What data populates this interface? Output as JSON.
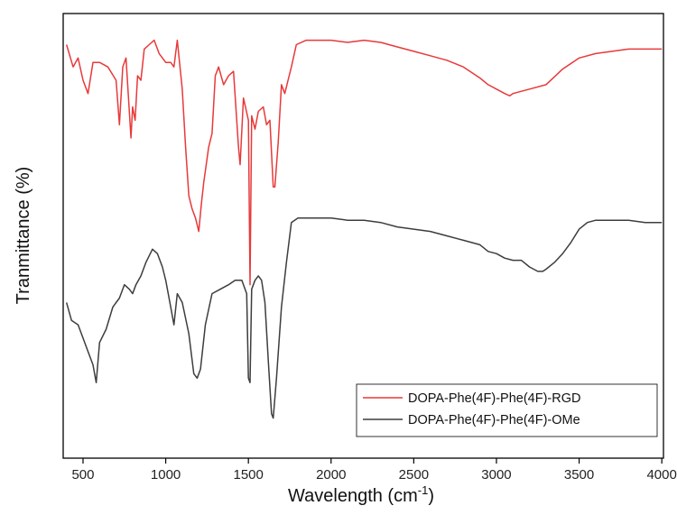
{
  "chart_data": {
    "type": "line",
    "title": "",
    "xlabel": "Wavelength (cm",
    "xlabel_sup": "-1",
    "xlabel_close": ")",
    "ylabel": "Tranmittance (%)",
    "xlim": [
      380,
      4010
    ],
    "xticks": [
      "500",
      "1000",
      "1500",
      "2000",
      "2500",
      "3000",
      "3500",
      "4000"
    ],
    "ylim": [
      0,
      100
    ],
    "y_ticks_shown": false,
    "grid": false,
    "legend_position": "bottom-right",
    "colors": {
      "rgd": "#e8393a",
      "ome": "#3d3d3d"
    },
    "series": [
      {
        "name": "DOPA-Phe(4F)-Phe(4F)-RGD",
        "x": [
          400,
          440,
          470,
          500,
          530,
          560,
          600,
          650,
          700,
          720,
          740,
          760,
          790,
          800,
          815,
          830,
          850,
          870,
          900,
          930,
          960,
          1000,
          1030,
          1050,
          1070,
          1100,
          1120,
          1140,
          1160,
          1180,
          1200,
          1215,
          1230,
          1260,
          1280,
          1300,
          1320,
          1350,
          1380,
          1410,
          1440,
          1450,
          1470,
          1500,
          1510,
          1520,
          1540,
          1560,
          1590,
          1610,
          1630,
          1650,
          1660,
          1680,
          1700,
          1720,
          1740,
          1760,
          1790,
          1850,
          1900,
          2000,
          2100,
          2200,
          2300,
          2400,
          2500,
          2600,
          2700,
          2800,
          2900,
          2950,
          3000,
          3050,
          3080,
          3100,
          3200,
          3300,
          3400,
          3500,
          3600,
          3700,
          3800,
          3900,
          4000
        ],
        "y": [
          93,
          88,
          90,
          85,
          82,
          89,
          89,
          88,
          85,
          75,
          88,
          90,
          72,
          79,
          76,
          86,
          85,
          92,
          93,
          94,
          91,
          89,
          89,
          88,
          94,
          83,
          70,
          59,
          56,
          54,
          51,
          57,
          62,
          70,
          73,
          86,
          88,
          84,
          86,
          87,
          70,
          66,
          81,
          76,
          39,
          77,
          74,
          78,
          79,
          75,
          76,
          61,
          61,
          71,
          84,
          82,
          85,
          88,
          93,
          94,
          94,
          94,
          93.5,
          94,
          93.5,
          92.5,
          91.5,
          90.5,
          89.5,
          88,
          85.5,
          84,
          83,
          82,
          81.5,
          82,
          83,
          84,
          87.5,
          90,
          91,
          91.5,
          92,
          92,
          92
        ]
      },
      {
        "name": "DOPA-Phe(4F)-Phe(4F)-OMe",
        "x": [
          400,
          430,
          470,
          500,
          530,
          560,
          580,
          600,
          640,
          680,
          720,
          750,
          780,
          800,
          820,
          850,
          880,
          920,
          950,
          980,
          1000,
          1030,
          1050,
          1070,
          1100,
          1140,
          1170,
          1190,
          1210,
          1240,
          1280,
          1330,
          1380,
          1420,
          1460,
          1490,
          1500,
          1510,
          1520,
          1540,
          1560,
          1580,
          1600,
          1620,
          1640,
          1650,
          1670,
          1700,
          1730,
          1760,
          1800,
          1900,
          2000,
          2100,
          2200,
          2300,
          2400,
          2500,
          2600,
          2700,
          2800,
          2900,
          2950,
          3000,
          3050,
          3100,
          3150,
          3200,
          3250,
          3280,
          3300,
          3350,
          3400,
          3450,
          3500,
          3550,
          3600,
          3700,
          3800,
          3900,
          4000
        ],
        "y": [
          35,
          31,
          30,
          27,
          24,
          21,
          17,
          26,
          29,
          34,
          36,
          39,
          38,
          37,
          39,
          41,
          44,
          47,
          46,
          43,
          40,
          34,
          30,
          37,
          35,
          28,
          19,
          18,
          20,
          30,
          37,
          38,
          39,
          40,
          40,
          37,
          18,
          17,
          38,
          40,
          41,
          40,
          35,
          22,
          10,
          9,
          18,
          34,
          44,
          53,
          54,
          54,
          54,
          53.5,
          53.5,
          53,
          52,
          51.5,
          51,
          50,
          49,
          48,
          46.5,
          46,
          45,
          44.5,
          44.5,
          43,
          42,
          42,
          42.5,
          44,
          46,
          48.5,
          51.5,
          53,
          53.5,
          53.5,
          53.5,
          53,
          53
        ]
      }
    ]
  }
}
